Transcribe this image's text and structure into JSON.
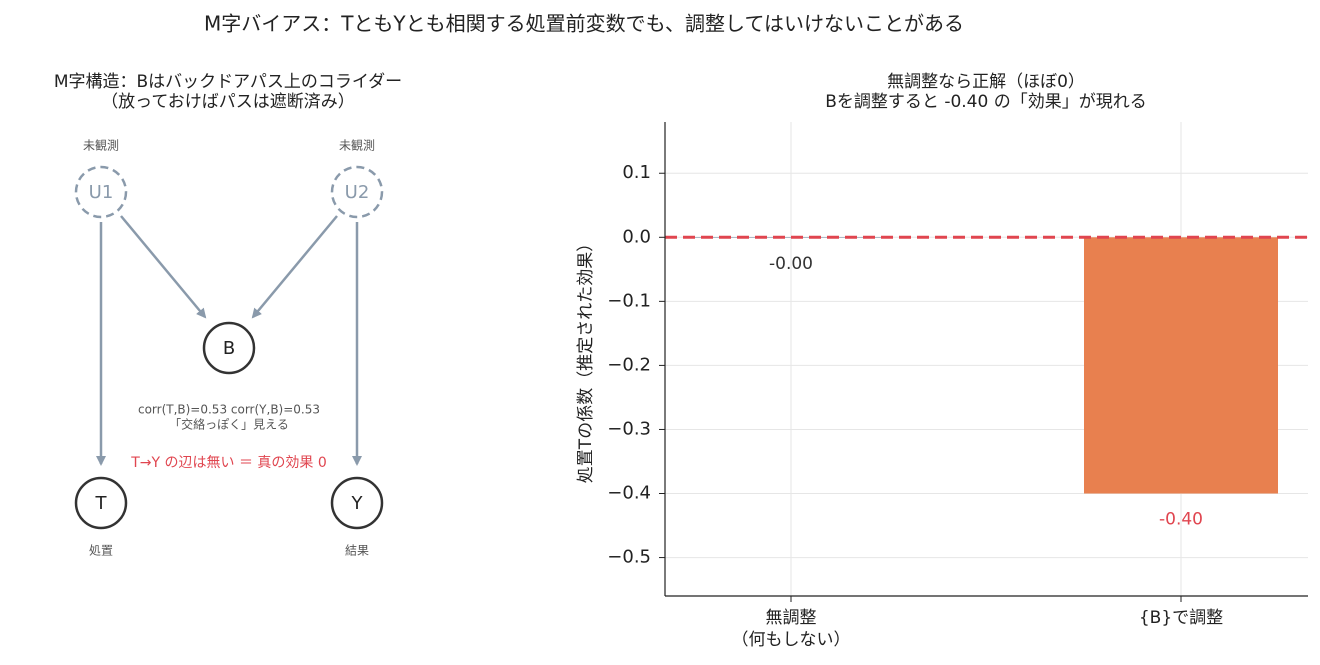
{
  "title": "M字バイアス：TともYとも相関する処置前変数でも、調整してはいけないことがある",
  "diagram": {
    "title": "M字構造：Bはバックドアパス上のコライダー",
    "subtitle": "（放っておけばパスは遮断済み）",
    "nodes": [
      {
        "label": "U1",
        "caption": "未観測"
      },
      {
        "label": "U2",
        "caption": "未観測"
      },
      {
        "label": "B"
      },
      {
        "label": "T",
        "caption": "処置"
      },
      {
        "label": "Y",
        "caption": "結果"
      }
    ],
    "annotations": [
      "corr(T,B)=0.53 corr(Y,B)=0.53",
      "「交絡っぽく」見える",
      "T→Y の辺は無い ＝ 真の効果 0"
    ]
  },
  "chart_data": {
    "type": "bar",
    "title": "無調整なら正解（ほぼ0）",
    "subtitle": "Bを調整すると -0.40 の「効果」が現れる",
    "y_label": "処置Tの係数（推定された効果）",
    "categories": [
      "無調整\n（何もしない）",
      "{B}で調整"
    ],
    "values": [
      -0.001,
      -0.4
    ],
    "value_labels": [
      "-0.00",
      "-0.40"
    ],
    "colors": [
      "#8fa0b3",
      "#e8804f"
    ],
    "value_label_colors": [
      "#333333",
      "#e0454f"
    ],
    "ylim": [
      -0.56,
      0.18
    ],
    "yticks": [
      0.1,
      {
        "value": 0,
        "label": "0.0"
      },
      {
        "value": -0.1,
        "label": "−0.1"
      },
      {
        "value": -0.2,
        "label": "−0.2"
      },
      {
        "value": -0.3,
        "label": "−0.3"
      },
      {
        "value": -0.4,
        "label": "−0.4"
      },
      {
        "value": -0.5,
        "label": "−0.5"
      }
    ],
    "grid": true,
    "reference_line": {
      "value": 0,
      "color": "#e0454f"
    }
  }
}
